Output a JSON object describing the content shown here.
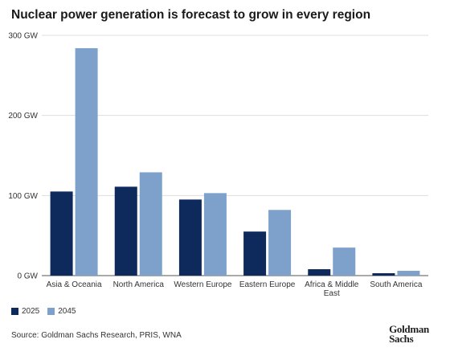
{
  "chart_data": {
    "type": "bar",
    "title": "Nuclear power generation is forecast to grow in every region",
    "categories": [
      "Asia & Oceania",
      "North America",
      "Western Europe",
      "Eastern Europe",
      "Africa & Middle East",
      "South America"
    ],
    "series": [
      {
        "name": "2025",
        "values": [
          105,
          111,
          95,
          55,
          8,
          3
        ],
        "color": "#0e2a5c"
      },
      {
        "name": "2045",
        "values": [
          284,
          129,
          103,
          82,
          35,
          6
        ],
        "color": "#7ea1cc"
      }
    ],
    "yticks": [
      "0 GW",
      "100 GW",
      "200 GW",
      "300 GW"
    ],
    "ytick_values": [
      0,
      100,
      200,
      300
    ],
    "ylim": [
      0,
      300
    ],
    "xlabel": "",
    "ylabel": "",
    "grid": true,
    "legend_position": "bottom-left"
  },
  "source": "Source: Goldman Sachs Research, PRIS, WNA",
  "logo": {
    "line1": "Goldman",
    "line2": "Sachs"
  }
}
